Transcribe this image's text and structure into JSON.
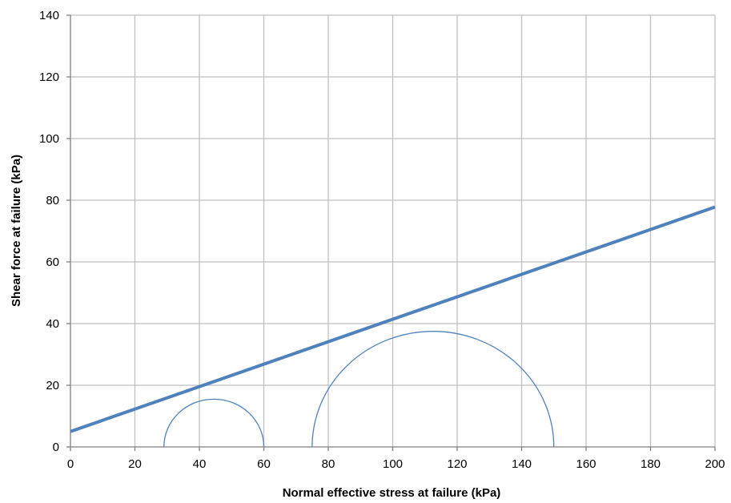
{
  "chart_data": {
    "type": "line",
    "xlabel": "Normal effective stress at failure (kPa)",
    "ylabel": "Shear force at failure (kPa)",
    "xlim": [
      0,
      200
    ],
    "ylim": [
      0,
      140
    ],
    "x_ticks": [
      0,
      20,
      40,
      60,
      80,
      100,
      120,
      140,
      160,
      180,
      200
    ],
    "y_ticks": [
      0,
      20,
      40,
      60,
      80,
      100,
      120,
      140
    ],
    "grid": true,
    "colors": {
      "series": "#4f81bd",
      "grid": "#bfbfbf",
      "axis": "#7f7f7f"
    },
    "series": [
      {
        "kind": "failure-envelope",
        "x": [
          0,
          200
        ],
        "y": [
          5,
          77.8
        ]
      },
      {
        "kind": "mohr-circle",
        "center": 44.5,
        "radius": 15.5
      },
      {
        "kind": "mohr-circle",
        "center": 112.5,
        "radius": 37.5
      }
    ]
  }
}
